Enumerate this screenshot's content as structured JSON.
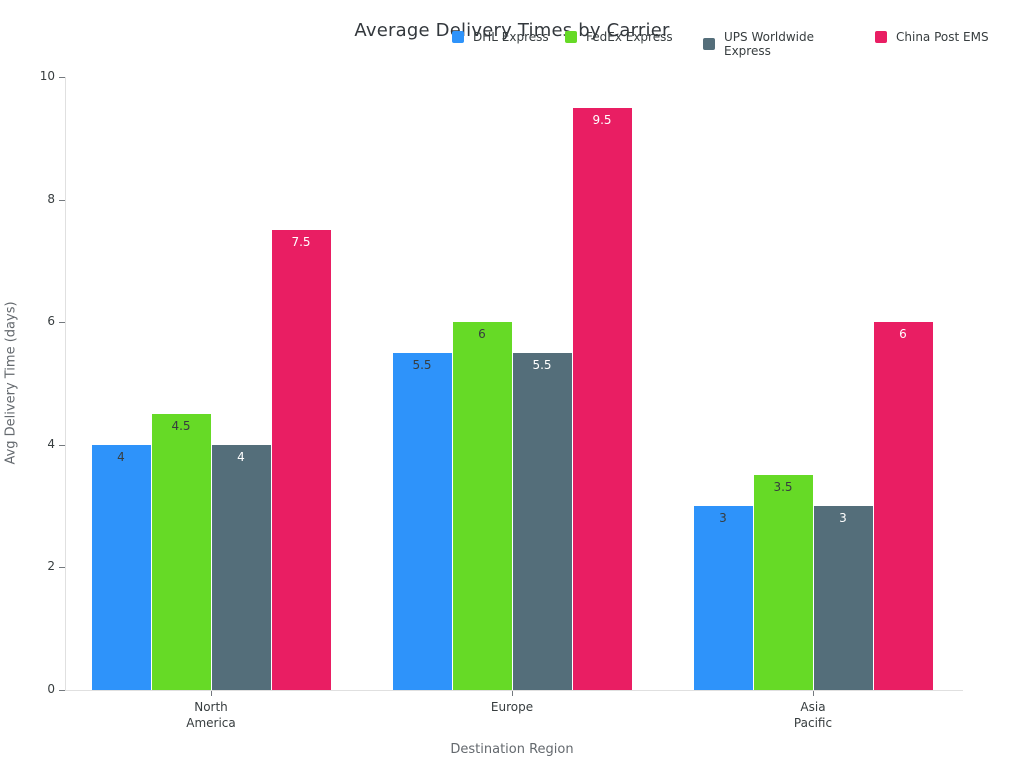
{
  "chart_data": {
    "type": "bar",
    "title": "Average Delivery Times by Carrier",
    "xlabel": "Destination Region",
    "ylabel": "Avg Delivery Time (days)",
    "categories": [
      "North\nAmerica",
      "Europe",
      "Asia\nPacific"
    ],
    "series": [
      {
        "name": "DHL Express",
        "color": "#2E93fA",
        "label_color": "#373d3f",
        "values": [
          4,
          5.5,
          3
        ]
      },
      {
        "name": "FedEx Express",
        "color": "#66DA26",
        "label_color": "#373d3f",
        "values": [
          4.5,
          6,
          3.5
        ]
      },
      {
        "name": "UPS Worldwide Express",
        "color": "#546E7A",
        "label_color": "#ffffff",
        "values": [
          4,
          5.5,
          3
        ]
      },
      {
        "name": "China Post EMS",
        "color": "#E91E63",
        "label_color": "#ffffff",
        "values": [
          7.5,
          9.5,
          6
        ]
      }
    ],
    "y_ticks": [
      0,
      2,
      4,
      6,
      8,
      10
    ],
    "ylim": [
      0,
      10
    ],
    "grid": false,
    "legend_position": "top",
    "value_label_position": "inside-top"
  },
  "colors": {
    "axis_line": "#e0e0e0",
    "tick_mark": "#74797e",
    "tick_label": "#373d3f",
    "axis_title": "#64696e",
    "chart_title": "#33383d",
    "background": "#ffffff"
  }
}
